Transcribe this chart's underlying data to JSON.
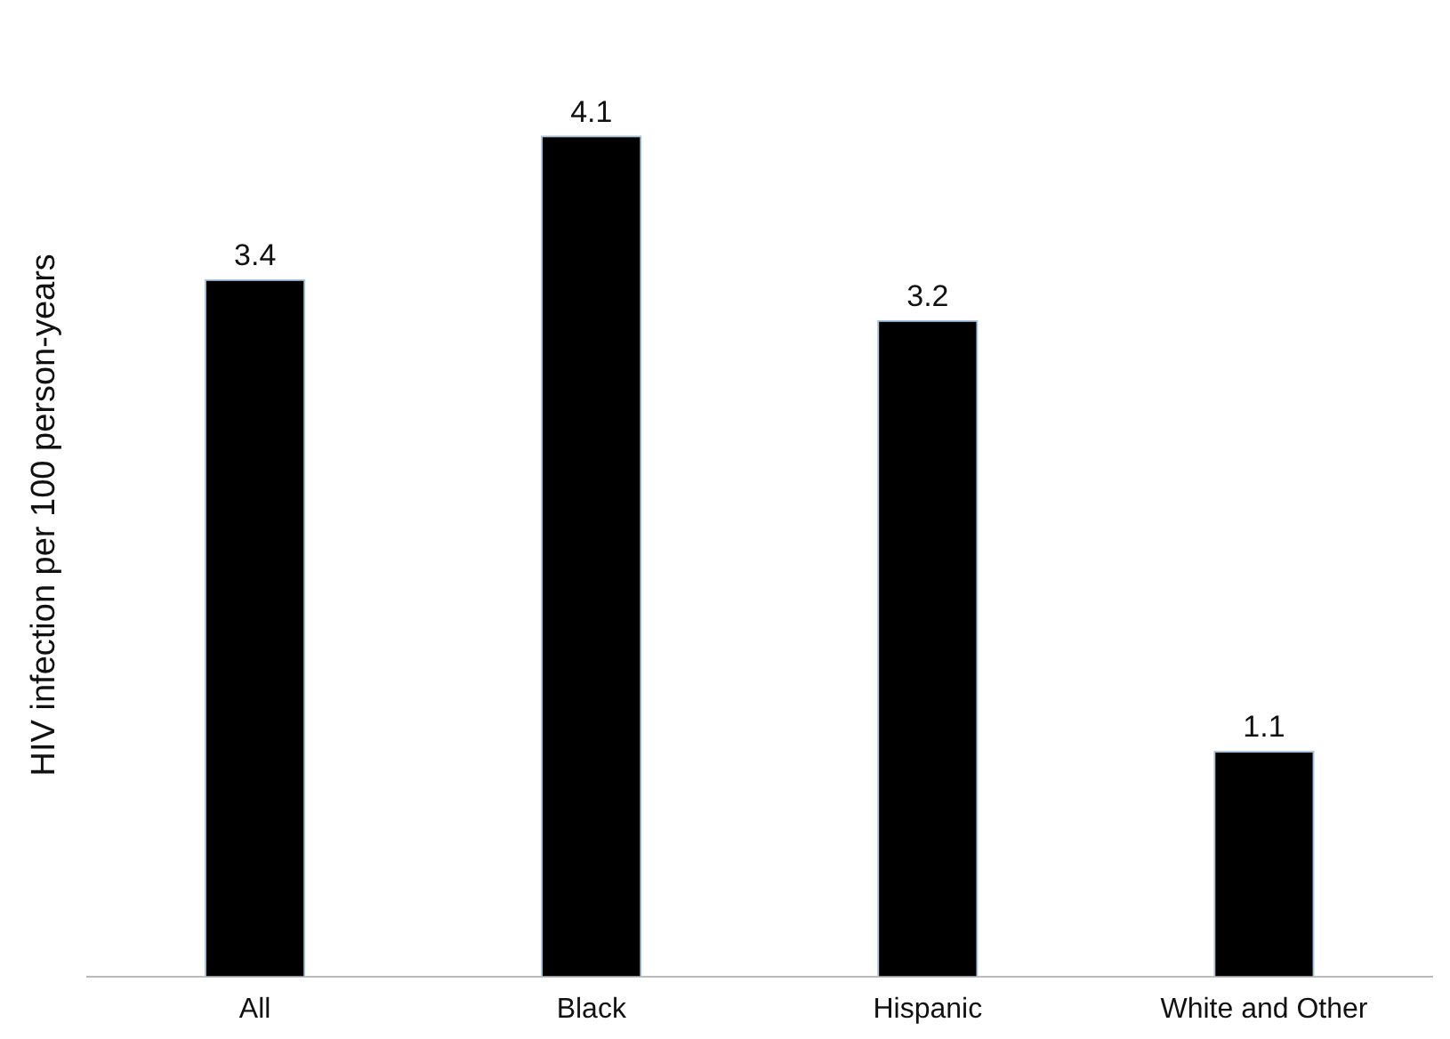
{
  "chart_data": {
    "type": "bar",
    "ylabel": "HIV infection per 100 person-years",
    "categories": [
      "All",
      "Black",
      "Hispanic",
      "White and Other"
    ],
    "values": [
      3.4,
      4.1,
      3.2,
      1.1
    ],
    "color": "#000000",
    "data_labels": true,
    "grid": false,
    "legend": false
  }
}
